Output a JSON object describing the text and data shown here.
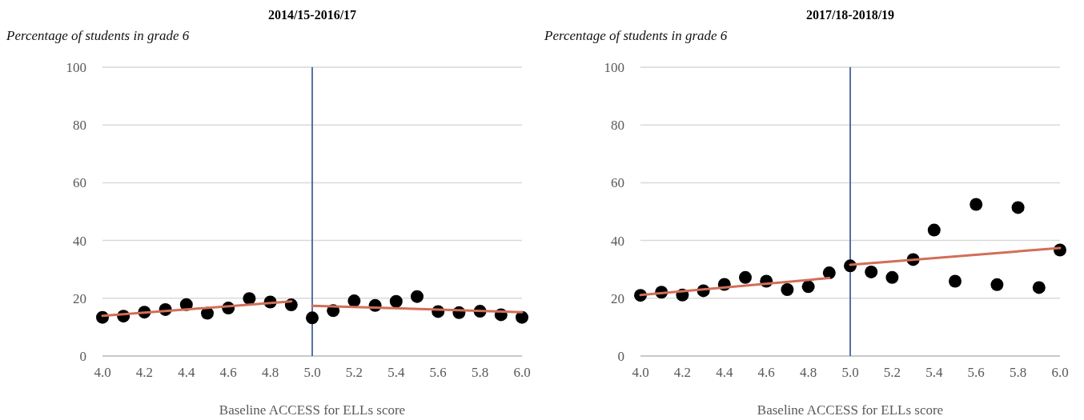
{
  "chart_data": [
    {
      "type": "scatter",
      "title": "2014/15-2016/17",
      "ylabel": "Percentage of students in grade 6",
      "xlabel": "Baseline ACCESS for ELLs score",
      "xlim": [
        4,
        6
      ],
      "xticks": [
        {
          "value": 4,
          "label": "4.0"
        },
        4.2,
        4.4,
        4.6,
        4.8,
        {
          "value": 5,
          "label": "5.0"
        },
        5.2,
        5.4,
        5.6,
        5.8,
        {
          "value": 6,
          "label": "6.0"
        }
      ],
      "ylim": [
        0,
        100
      ],
      "yticks": [
        0,
        20,
        40,
        60,
        80,
        100
      ],
      "grid": "y",
      "ref_lines": [
        {
          "axis": "x",
          "value": 5,
          "color": "#44619a"
        }
      ],
      "series": [
        {
          "type": "scatter",
          "marker": "circle",
          "color": "#000000",
          "x": [
            4.0,
            4.1,
            4.2,
            4.3,
            4.4,
            4.5,
            4.6,
            4.7,
            4.8,
            4.9,
            5.0,
            5.1,
            5.2,
            5.3,
            5.4,
            5.5,
            5.6,
            5.7,
            5.8,
            5.9,
            6.0
          ],
          "values": [
            13.4,
            13.8,
            15.2,
            16.1,
            17.8,
            14.8,
            16.6,
            19.9,
            18.7,
            17.7,
            13.2,
            15.7,
            19.1,
            17.5,
            18.9,
            20.6,
            15.4,
            15.0,
            15.5,
            14.3,
            13.4
          ]
        },
        {
          "type": "line",
          "marker": "none",
          "color": "#d26e58",
          "x": [
            4.0,
            4.9
          ],
          "values": [
            13.9,
            18.9
          ]
        },
        {
          "type": "line",
          "marker": "none",
          "color": "#d26e58",
          "x": [
            5.0,
            6.0
          ],
          "values": [
            17.4,
            15.2
          ]
        }
      ]
    },
    {
      "type": "scatter",
      "title": "2017/18-2018/19",
      "ylabel": "Percentage of students in grade 6",
      "xlabel": "Baseline ACCESS for ELLs score",
      "xlim": [
        4,
        6
      ],
      "xticks": [
        {
          "value": 4,
          "label": "4.0"
        },
        4.2,
        4.4,
        4.6,
        4.8,
        {
          "value": 5,
          "label": "5.0"
        },
        5.2,
        5.4,
        5.6,
        5.8,
        {
          "value": 6,
          "label": "6.0"
        }
      ],
      "ylim": [
        0,
        100
      ],
      "yticks": [
        0,
        20,
        40,
        60,
        80,
        100
      ],
      "grid": "y",
      "ref_lines": [
        {
          "axis": "x",
          "value": 5,
          "color": "#44619a"
        }
      ],
      "series": [
        {
          "type": "scatter",
          "marker": "circle",
          "color": "#000000",
          "x": [
            4.0,
            4.1,
            4.2,
            4.3,
            4.4,
            4.5,
            4.6,
            4.7,
            4.8,
            4.9,
            5.0,
            5.1,
            5.2,
            5.3,
            5.4,
            5.5,
            5.6,
            5.7,
            5.8,
            5.9,
            6.0
          ],
          "values": [
            21.0,
            22.1,
            21.1,
            22.6,
            24.8,
            27.2,
            25.9,
            23.0,
            24.0,
            28.8,
            31.2,
            29.1,
            27.2,
            33.4,
            43.6,
            25.9,
            52.5,
            24.7,
            51.4,
            23.7,
            36.7
          ]
        },
        {
          "type": "line",
          "marker": "none",
          "color": "#d26e58",
          "x": [
            4.0,
            4.9
          ],
          "values": [
            21.1,
            27.0
          ]
        },
        {
          "type": "line",
          "marker": "none",
          "color": "#d26e58",
          "x": [
            5.0,
            6.0
          ],
          "values": [
            31.6,
            37.4
          ]
        }
      ]
    }
  ]
}
